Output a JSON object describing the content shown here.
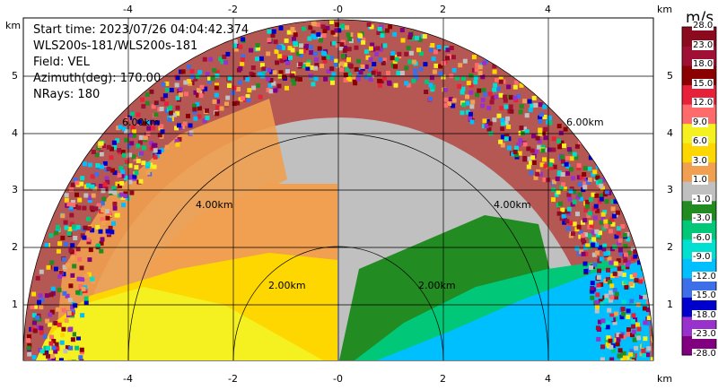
{
  "info": {
    "start_time": "Start time: 2023/07/26 04:04:42.374",
    "instrument": "WLS200s-181/WLS200s-181",
    "field": "Field: VEL",
    "azimuth": "Azimuth(deg): 170.00",
    "nrays": "NRays: 180"
  },
  "axes": {
    "unit_top_left": "km",
    "unit_top_right": "km",
    "unit_bottom_right": "km",
    "x_ticks": [
      "-4",
      "-2",
      "-0",
      "2",
      "4"
    ],
    "y_ticks": [
      "1",
      "2",
      "3",
      "4",
      "5"
    ],
    "x_range": [
      -6.0,
      6.0
    ],
    "y_range": [
      0.0,
      6.0
    ]
  },
  "rings": [
    "2.00km",
    "4.00km",
    "6.00km"
  ],
  "colorbar": {
    "title": "m/s",
    "labels": [
      "28.0",
      "23.0",
      "18.0",
      "15.0",
      "12.0",
      "9.0",
      "6.0",
      "3.0",
      "1.0",
      "-1.0",
      "-3.0",
      "-6.0",
      "-9.0",
      "-12.0",
      "-15.0",
      "-18.0",
      "-23.0",
      "-28.0"
    ],
    "colors": [
      "#8b0a1e",
      "#a01035",
      "#8b0000",
      "#e8213a",
      "#ff6a6a",
      "#f5f020",
      "#ffd700",
      "#f0a050",
      "#c0c0c0",
      "#228b22",
      "#00c878",
      "#00e0d0",
      "#00bfff",
      "#3c6fe8",
      "#0000cd",
      "#9932cc",
      "#800080"
    ]
  }
}
